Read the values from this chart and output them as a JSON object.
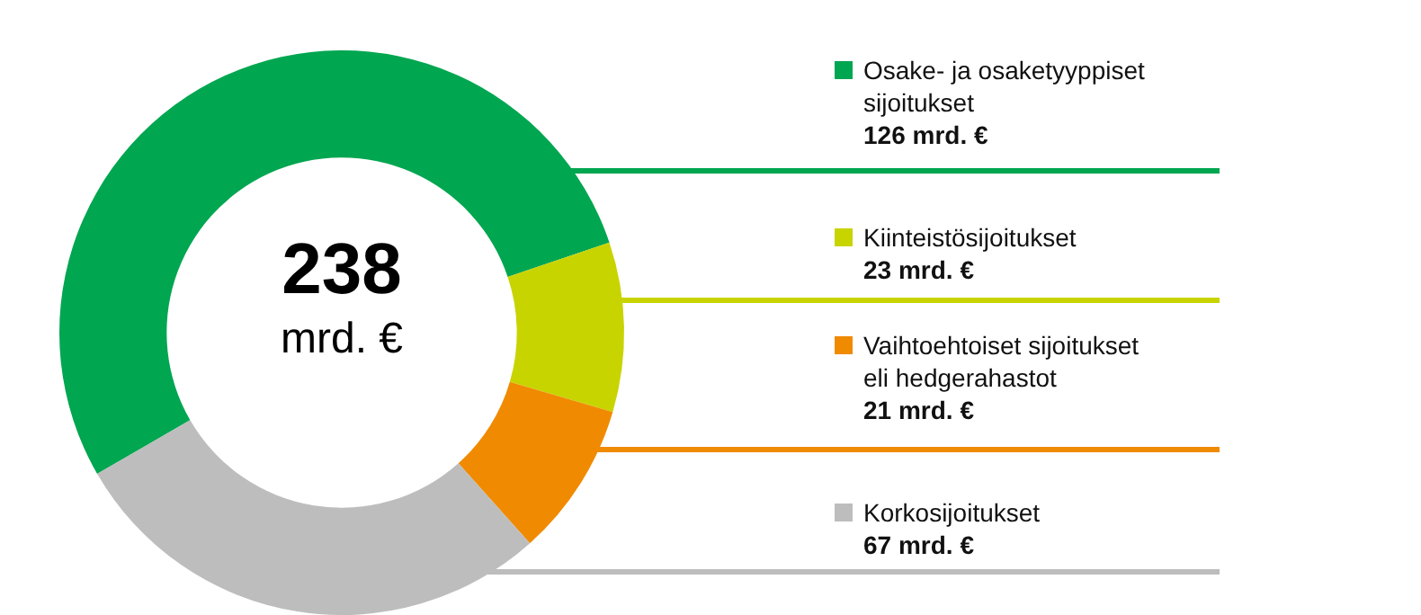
{
  "chart_data": {
    "type": "donut",
    "categories": [
      "Osake- ja osaketyyppiset sijoitukset",
      "Kiinteistösijoitukset",
      "Vaihtoehtoiset sijoitukset eli hedgerahastot",
      "Korkosijoitukset"
    ],
    "values": [
      126,
      23,
      21,
      67
    ],
    "value_labels": [
      "126 mrd. €",
      "23 mrd. €",
      "21 mrd. €",
      "67 mrd. €"
    ],
    "colors": [
      "#00a650",
      "#c8d400",
      "#f08a00",
      "#bdbdbd"
    ],
    "annotations": [
      "238",
      "mrd. €"
    ],
    "legend": "right"
  }
}
